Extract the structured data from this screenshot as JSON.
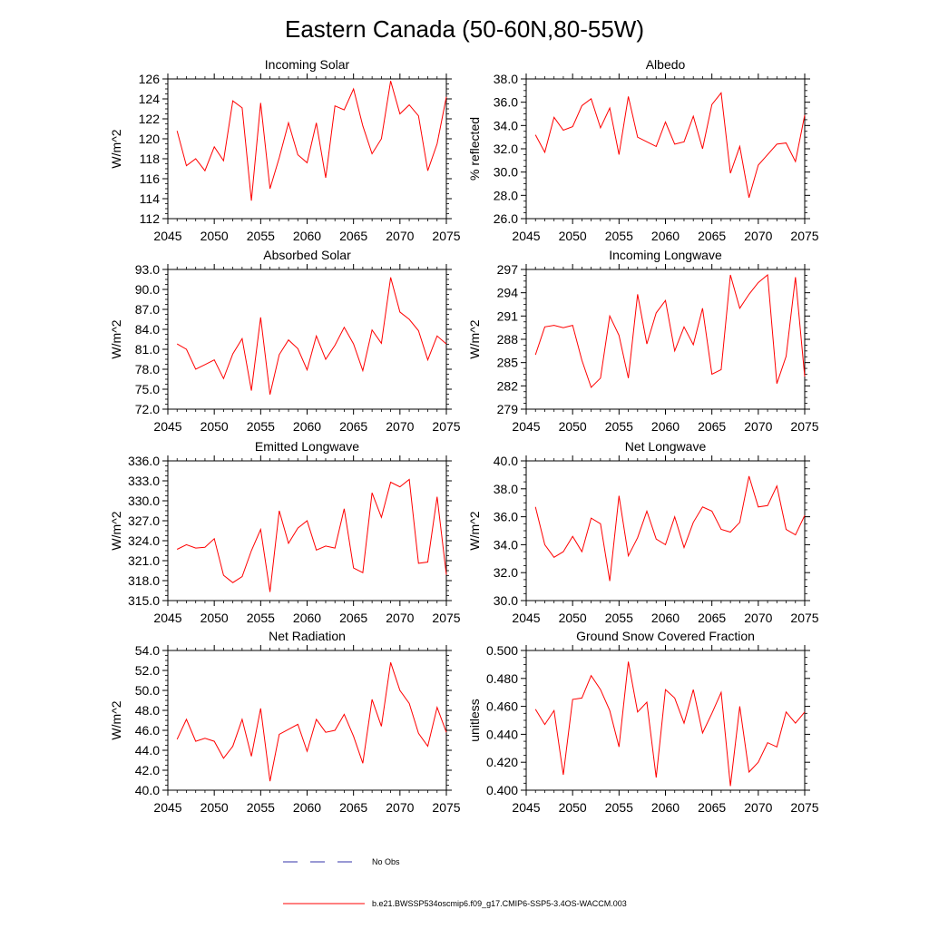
{
  "page": {
    "title": "Eastern Canada (50-60N,80-55W)"
  },
  "legend": {
    "obs_label": "No Obs",
    "obs_color": "#3333aa",
    "model_label": "b.e21.BWSSP534oscmip6.f09_g17.CMIP6-SSP5-3.4OS-WACCM.003",
    "model_color": "#ff0000"
  },
  "chart_data": [
    {
      "type": "line",
      "title": "Incoming Solar",
      "ylabel": "W/m^2",
      "xlim": [
        2045,
        2075
      ],
      "ylim": [
        112,
        126
      ],
      "yticks": [
        112,
        114,
        116,
        118,
        120,
        122,
        124,
        126
      ],
      "ytick_labels": [
        "112",
        "114",
        "116",
        "118",
        "120",
        "122",
        "124",
        "126"
      ],
      "xticks": [
        2045,
        2050,
        2055,
        2060,
        2065,
        2070,
        2075
      ],
      "xtick_labels": [
        "2045",
        "2050",
        "2055",
        "2060",
        "2065",
        "2070",
        "2075"
      ],
      "x": [
        2046,
        2047,
        2048,
        2049,
        2050,
        2051,
        2052,
        2053,
        2054,
        2055,
        2056,
        2057,
        2058,
        2059,
        2060,
        2061,
        2062,
        2063,
        2064,
        2065,
        2066,
        2067,
        2068,
        2069,
        2070,
        2071,
        2072,
        2073,
        2074,
        2075
      ],
      "values": [
        120.8,
        117.3,
        118.0,
        116.8,
        119.2,
        117.8,
        123.8,
        123.1,
        113.8,
        123.6,
        115.0,
        118.1,
        121.6,
        118.4,
        117.6,
        121.6,
        116.1,
        123.3,
        122.9,
        125.0,
        121.3,
        118.5,
        120.0,
        125.8,
        122.5,
        123.4,
        122.3,
        116.8,
        119.5,
        124.2
      ],
      "color": "#ff0000"
    },
    {
      "type": "line",
      "title": "Albedo",
      "ylabel": "% reflected",
      "xlim": [
        2045,
        2075
      ],
      "ylim": [
        26,
        38
      ],
      "yticks": [
        26,
        28,
        30,
        32,
        34,
        36,
        38
      ],
      "ytick_labels": [
        "26.0",
        "28.0",
        "30.0",
        "32.0",
        "34.0",
        "36.0",
        "38.0"
      ],
      "xticks": [
        2045,
        2050,
        2055,
        2060,
        2065,
        2070,
        2075
      ],
      "xtick_labels": [
        "2045",
        "2050",
        "2055",
        "2060",
        "2065",
        "2070",
        "2075"
      ],
      "x": [
        2046,
        2047,
        2048,
        2049,
        2050,
        2051,
        2052,
        2053,
        2054,
        2055,
        2056,
        2057,
        2058,
        2059,
        2060,
        2061,
        2062,
        2063,
        2064,
        2065,
        2066,
        2067,
        2068,
        2069,
        2070,
        2071,
        2072,
        2073,
        2074,
        2075
      ],
      "values": [
        33.2,
        31.7,
        34.7,
        33.6,
        33.9,
        35.7,
        36.3,
        33.8,
        35.5,
        31.5,
        36.5,
        33.0,
        32.6,
        32.2,
        34.3,
        32.4,
        32.6,
        34.8,
        32.0,
        35.8,
        36.8,
        29.9,
        32.2,
        27.8,
        30.6,
        31.5,
        32.4,
        32.5,
        30.9,
        34.9
      ],
      "color": "#ff0000"
    },
    {
      "type": "line",
      "title": "Absorbed Solar",
      "ylabel": "W/m^2",
      "xlim": [
        2045,
        2075
      ],
      "ylim": [
        72,
        93
      ],
      "yticks": [
        72,
        75,
        78,
        81,
        84,
        87,
        90,
        93
      ],
      "ytick_labels": [
        "72.0",
        "75.0",
        "78.0",
        "81.0",
        "84.0",
        "87.0",
        "90.0",
        "93.0"
      ],
      "xticks": [
        2045,
        2050,
        2055,
        2060,
        2065,
        2070,
        2075
      ],
      "xtick_labels": [
        "2045",
        "2050",
        "2055",
        "2060",
        "2065",
        "2070",
        "2075"
      ],
      "x": [
        2046,
        2047,
        2048,
        2049,
        2050,
        2051,
        2052,
        2053,
        2054,
        2055,
        2056,
        2057,
        2058,
        2059,
        2060,
        2061,
        2062,
        2063,
        2064,
        2065,
        2066,
        2067,
        2068,
        2069,
        2070,
        2071,
        2072,
        2073,
        2074,
        2075
      ],
      "values": [
        81.8,
        81.0,
        78.0,
        78.7,
        79.4,
        76.6,
        80.3,
        82.6,
        74.8,
        85.8,
        74.2,
        80.2,
        82.4,
        81.1,
        77.9,
        83.0,
        79.5,
        81.6,
        84.3,
        81.8,
        77.8,
        83.9,
        81.9,
        91.8,
        86.6,
        85.5,
        83.8,
        79.4,
        83.0,
        81.8
      ],
      "color": "#ff0000"
    },
    {
      "type": "line",
      "title": "Incoming Longwave",
      "ylabel": "W/m^2",
      "xlim": [
        2045,
        2075
      ],
      "ylim": [
        279,
        297
      ],
      "yticks": [
        279,
        282,
        285,
        288,
        291,
        294,
        297
      ],
      "ytick_labels": [
        "279",
        "282",
        "285",
        "288",
        "291",
        "294",
        "297"
      ],
      "xticks": [
        2045,
        2050,
        2055,
        2060,
        2065,
        2070,
        2075
      ],
      "xtick_labels": [
        "2045",
        "2050",
        "2055",
        "2060",
        "2065",
        "2070",
        "2075"
      ],
      "x": [
        2046,
        2047,
        2048,
        2049,
        2050,
        2051,
        2052,
        2053,
        2054,
        2055,
        2056,
        2057,
        2058,
        2059,
        2060,
        2061,
        2062,
        2063,
        2064,
        2065,
        2066,
        2067,
        2068,
        2069,
        2070,
        2071,
        2072,
        2073,
        2074,
        2075
      ],
      "values": [
        286.0,
        289.6,
        289.8,
        289.5,
        289.8,
        285.3,
        281.8,
        283.0,
        291.0,
        288.5,
        283.0,
        293.8,
        287.4,
        291.4,
        293.0,
        286.5,
        289.6,
        287.3,
        292.0,
        283.5,
        284.1,
        296.3,
        292.0,
        293.8,
        295.3,
        296.3,
        282.3,
        285.8,
        296.0,
        283.2
      ],
      "color": "#ff0000"
    },
    {
      "type": "line",
      "title": "Emitted Longwave",
      "ylabel": "W/m^2",
      "xlim": [
        2045,
        2075
      ],
      "ylim": [
        315,
        336
      ],
      "yticks": [
        315,
        318,
        321,
        324,
        327,
        330,
        333,
        336
      ],
      "ytick_labels": [
        "315.0",
        "318.0",
        "321.0",
        "324.0",
        "327.0",
        "330.0",
        "333.0",
        "336.0"
      ],
      "xticks": [
        2045,
        2050,
        2055,
        2060,
        2065,
        2070,
        2075
      ],
      "xtick_labels": [
        "2045",
        "2050",
        "2055",
        "2060",
        "2065",
        "2070",
        "2075"
      ],
      "x": [
        2046,
        2047,
        2048,
        2049,
        2050,
        2051,
        2052,
        2053,
        2054,
        2055,
        2056,
        2057,
        2058,
        2059,
        2060,
        2061,
        2062,
        2063,
        2064,
        2065,
        2066,
        2067,
        2068,
        2069,
        2070,
        2071,
        2072,
        2073,
        2074,
        2075
      ],
      "values": [
        322.7,
        323.4,
        322.9,
        323.0,
        324.3,
        318.8,
        317.7,
        318.6,
        322.5,
        325.7,
        316.3,
        328.5,
        323.6,
        325.9,
        327.0,
        322.6,
        323.2,
        322.9,
        328.8,
        319.9,
        319.2,
        331.2,
        327.5,
        332.8,
        332.1,
        333.2,
        320.6,
        320.8,
        330.6,
        318.9
      ],
      "color": "#ff0000"
    },
    {
      "type": "line",
      "title": "Net Longwave",
      "ylabel": "W/m^2",
      "xlim": [
        2045,
        2075
      ],
      "ylim": [
        30,
        40
      ],
      "yticks": [
        30,
        32,
        34,
        36,
        38,
        40
      ],
      "ytick_labels": [
        "30.0",
        "32.0",
        "34.0",
        "36.0",
        "38.0",
        "40.0"
      ],
      "xticks": [
        2045,
        2050,
        2055,
        2060,
        2065,
        2070,
        2075
      ],
      "xtick_labels": [
        "2045",
        "2050",
        "2055",
        "2060",
        "2065",
        "2070",
        "2075"
      ],
      "x": [
        2046,
        2047,
        2048,
        2049,
        2050,
        2051,
        2052,
        2053,
        2054,
        2055,
        2056,
        2057,
        2058,
        2059,
        2060,
        2061,
        2062,
        2063,
        2064,
        2065,
        2066,
        2067,
        2068,
        2069,
        2070,
        2071,
        2072,
        2073,
        2074,
        2075
      ],
      "values": [
        36.7,
        34.0,
        33.1,
        33.5,
        34.6,
        33.5,
        35.9,
        35.5,
        31.4,
        37.5,
        33.2,
        34.5,
        36.4,
        34.4,
        34.0,
        36.0,
        33.8,
        35.6,
        36.7,
        36.4,
        35.1,
        34.9,
        35.6,
        38.9,
        36.7,
        36.8,
        38.2,
        35.1,
        34.7,
        36.1
      ],
      "color": "#ff0000"
    },
    {
      "type": "line",
      "title": "Net Radiation",
      "ylabel": "W/m^2",
      "xlim": [
        2045,
        2075
      ],
      "ylim": [
        40,
        54
      ],
      "yticks": [
        40,
        42,
        44,
        46,
        48,
        50,
        52,
        54
      ],
      "ytick_labels": [
        "40.0",
        "42.0",
        "44.0",
        "46.0",
        "48.0",
        "50.0",
        "52.0",
        "54.0"
      ],
      "xticks": [
        2045,
        2050,
        2055,
        2060,
        2065,
        2070,
        2075
      ],
      "xtick_labels": [
        "2045",
        "2050",
        "2055",
        "2060",
        "2065",
        "2070",
        "2075"
      ],
      "x": [
        2046,
        2047,
        2048,
        2049,
        2050,
        2051,
        2052,
        2053,
        2054,
        2055,
        2056,
        2057,
        2058,
        2059,
        2060,
        2061,
        2062,
        2063,
        2064,
        2065,
        2066,
        2067,
        2068,
        2069,
        2070,
        2071,
        2072,
        2073,
        2074,
        2075
      ],
      "values": [
        45.1,
        47.1,
        44.9,
        45.2,
        44.9,
        43.2,
        44.4,
        47.1,
        43.4,
        48.2,
        40.9,
        45.6,
        46.1,
        46.6,
        43.9,
        47.1,
        45.8,
        46.0,
        47.6,
        45.4,
        42.7,
        49.1,
        46.4,
        52.8,
        50.0,
        48.7,
        45.7,
        44.4,
        48.3,
        45.8
      ],
      "color": "#ff0000"
    },
    {
      "type": "line",
      "title": "Ground Snow Covered Fraction",
      "ylabel": "unitless",
      "xlim": [
        2045,
        2075
      ],
      "ylim": [
        0.4,
        0.5
      ],
      "yticks": [
        0.4,
        0.42,
        0.44,
        0.46,
        0.48,
        0.5
      ],
      "ytick_labels": [
        "0.400",
        "0.420",
        "0.440",
        "0.460",
        "0.480",
        "0.500"
      ],
      "xticks": [
        2045,
        2050,
        2055,
        2060,
        2065,
        2070,
        2075
      ],
      "xtick_labels": [
        "2045",
        "2050",
        "2055",
        "2060",
        "2065",
        "2070",
        "2075"
      ],
      "x": [
        2046,
        2047,
        2048,
        2049,
        2050,
        2051,
        2052,
        2053,
        2054,
        2055,
        2056,
        2057,
        2058,
        2059,
        2060,
        2061,
        2062,
        2063,
        2064,
        2065,
        2066,
        2067,
        2068,
        2069,
        2070,
        2071,
        2072,
        2073,
        2074,
        2075
      ],
      "values": [
        0.458,
        0.447,
        0.457,
        0.411,
        0.465,
        0.466,
        0.482,
        0.472,
        0.457,
        0.431,
        0.492,
        0.456,
        0.463,
        0.409,
        0.472,
        0.466,
        0.448,
        0.472,
        0.441,
        0.455,
        0.47,
        0.403,
        0.46,
        0.413,
        0.42,
        0.434,
        0.431,
        0.456,
        0.448,
        0.456
      ],
      "color": "#ff0000"
    }
  ]
}
